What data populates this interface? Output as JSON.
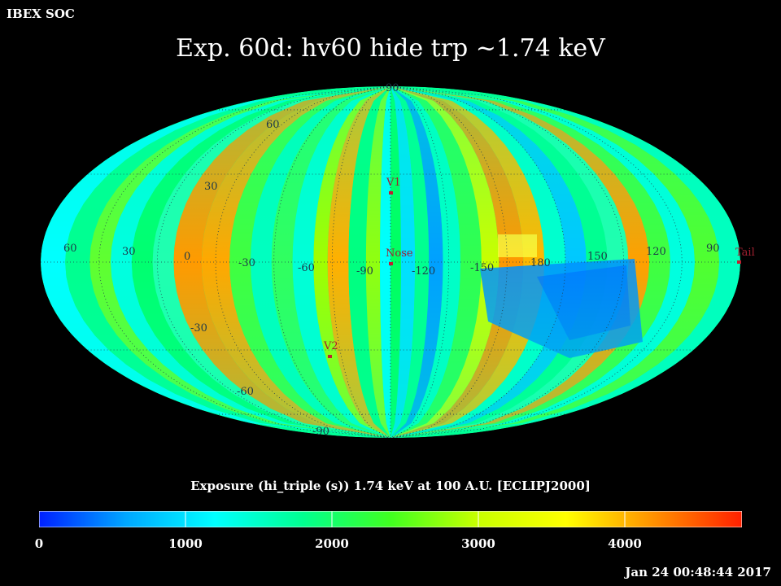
{
  "header": {
    "org": "IBEX SOC",
    "title": "Exp.   60d: hv60 hide trp ~1.74 keV"
  },
  "map": {
    "projection": "Mollweide",
    "grid": true,
    "latitude_labels": [
      "90",
      "60",
      "30",
      "-30",
      "-60",
      "-90"
    ],
    "longitude_labels": [
      "60",
      "30",
      "0",
      "-30",
      "-60",
      "-90",
      "-120",
      "-150",
      "180",
      "150",
      "120",
      "90"
    ],
    "markers": [
      {
        "name": "V1"
      },
      {
        "name": "Nose"
      },
      {
        "name": "V2"
      },
      {
        "name": "Tail"
      }
    ]
  },
  "colorbar": {
    "label": "Exposure (hi_triple (s))  1.74 keV at 100 A.U. [ECLIPJ2000]",
    "min": 0,
    "max": 4800,
    "ticks": [
      "0",
      "1000",
      "2000",
      "3000",
      "4000"
    ],
    "colors": [
      "#0020ff",
      "#00a8ff",
      "#00ffff",
      "#00ff90",
      "#40ff20",
      "#c8ff00",
      "#ffff00",
      "#ff9000",
      "#ff2000"
    ]
  },
  "footer": {
    "timestamp": "Jan 24 00:48:44 2017"
  }
}
